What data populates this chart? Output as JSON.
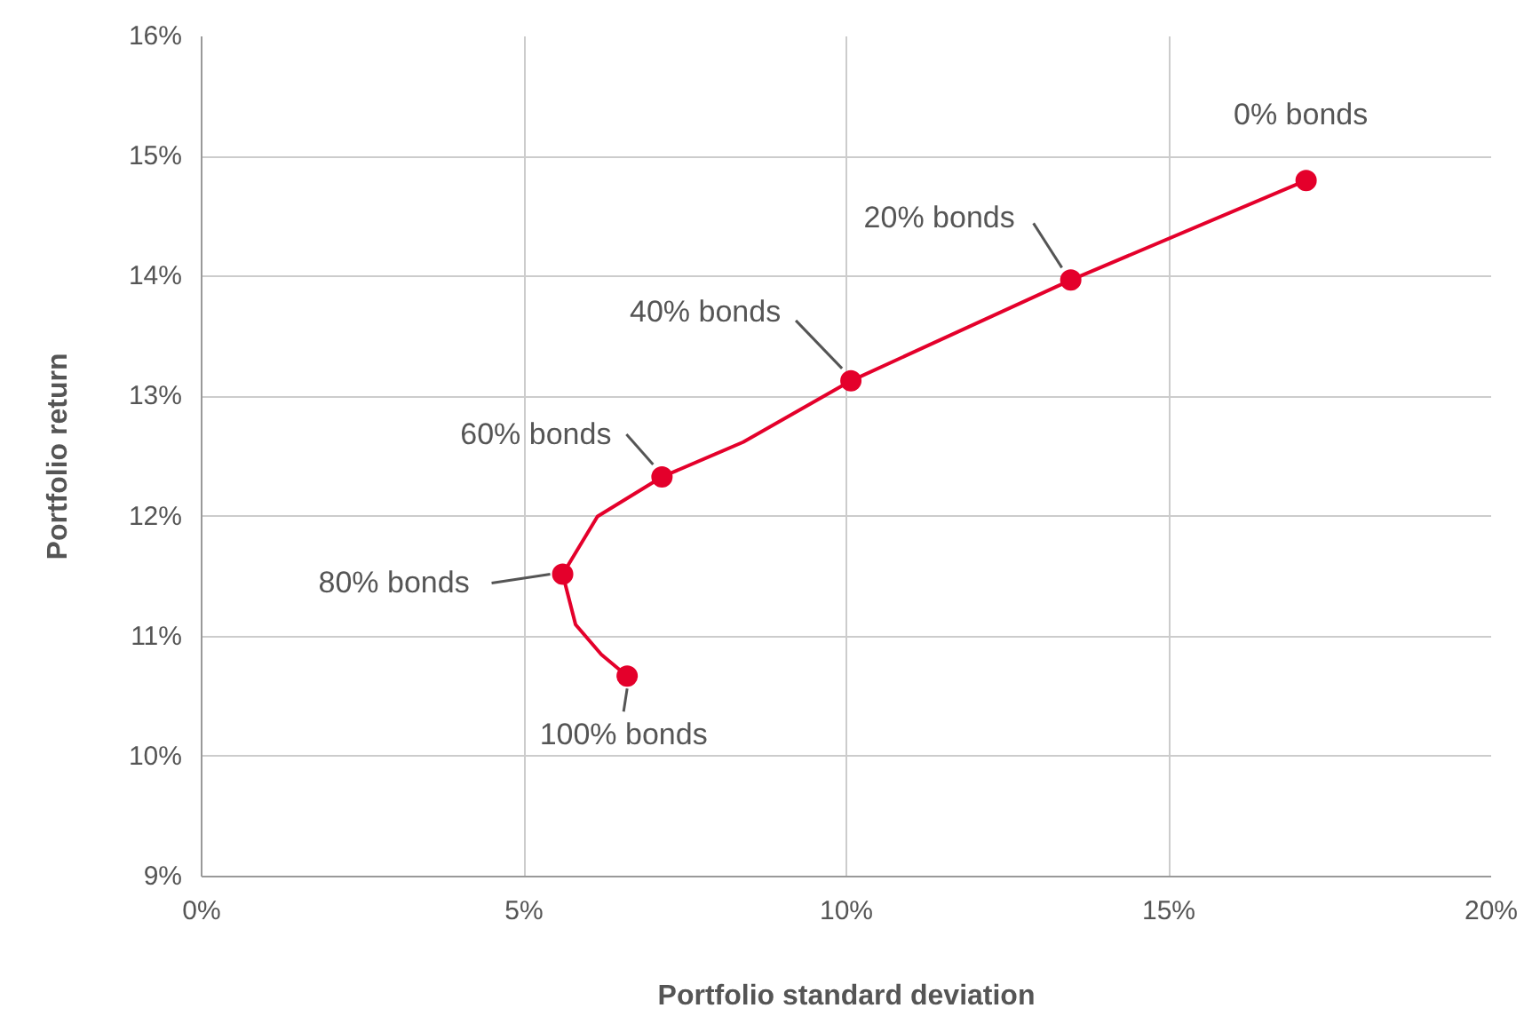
{
  "chart_data": {
    "type": "line",
    "xlabel": "Portfolio standard deviation",
    "ylabel": "Portfolio return",
    "xlim": [
      0,
      20
    ],
    "ylim": [
      9,
      16
    ],
    "xticks": [
      {
        "value": 0,
        "label": "0%"
      },
      {
        "value": 5,
        "label": "5%"
      },
      {
        "value": 10,
        "label": "10%"
      },
      {
        "value": 15,
        "label": "15%"
      },
      {
        "value": 20,
        "label": "20%"
      }
    ],
    "yticks": [
      {
        "value": 9,
        "label": "9%"
      },
      {
        "value": 10,
        "label": "10%"
      },
      {
        "value": 11,
        "label": "11%"
      },
      {
        "value": 12,
        "label": "12%"
      },
      {
        "value": 13,
        "label": "13%"
      },
      {
        "value": 14,
        "label": "14%"
      },
      {
        "value": 15,
        "label": "15%"
      },
      {
        "value": 16,
        "label": "16%"
      }
    ],
    "grid": true,
    "series": [
      {
        "color": "#e4002b",
        "x": [
          17.13,
          13.48,
          10.07,
          8.4,
          7.14,
          6.14,
          5.6,
          5.8,
          6.2,
          6.6
        ],
        "values": [
          14.8,
          13.97,
          13.13,
          12.62,
          12.33,
          12.0,
          11.52,
          11.1,
          10.85,
          10.67
        ]
      },
      {
        "type": "scatter",
        "color": "#e4002b",
        "marker": "circle",
        "x": [
          17.13,
          13.48,
          10.07,
          7.14,
          5.6,
          6.6
        ],
        "values": [
          14.8,
          13.97,
          13.13,
          12.33,
          11.52,
          10.67
        ]
      }
    ],
    "annotations": [
      {
        "text": "0% bonds",
        "x": 17.13,
        "y": 14.8
      },
      {
        "text": "20% bonds",
        "x": 13.48,
        "y": 13.97
      },
      {
        "text": "40% bonds",
        "x": 10.07,
        "y": 13.13
      },
      {
        "text": "60% bonds",
        "x": 7.14,
        "y": 12.33
      },
      {
        "text": "80% bonds",
        "x": 5.6,
        "y": 11.52
      },
      {
        "text": "100% bonds",
        "x": 6.6,
        "y": 10.67
      }
    ]
  }
}
